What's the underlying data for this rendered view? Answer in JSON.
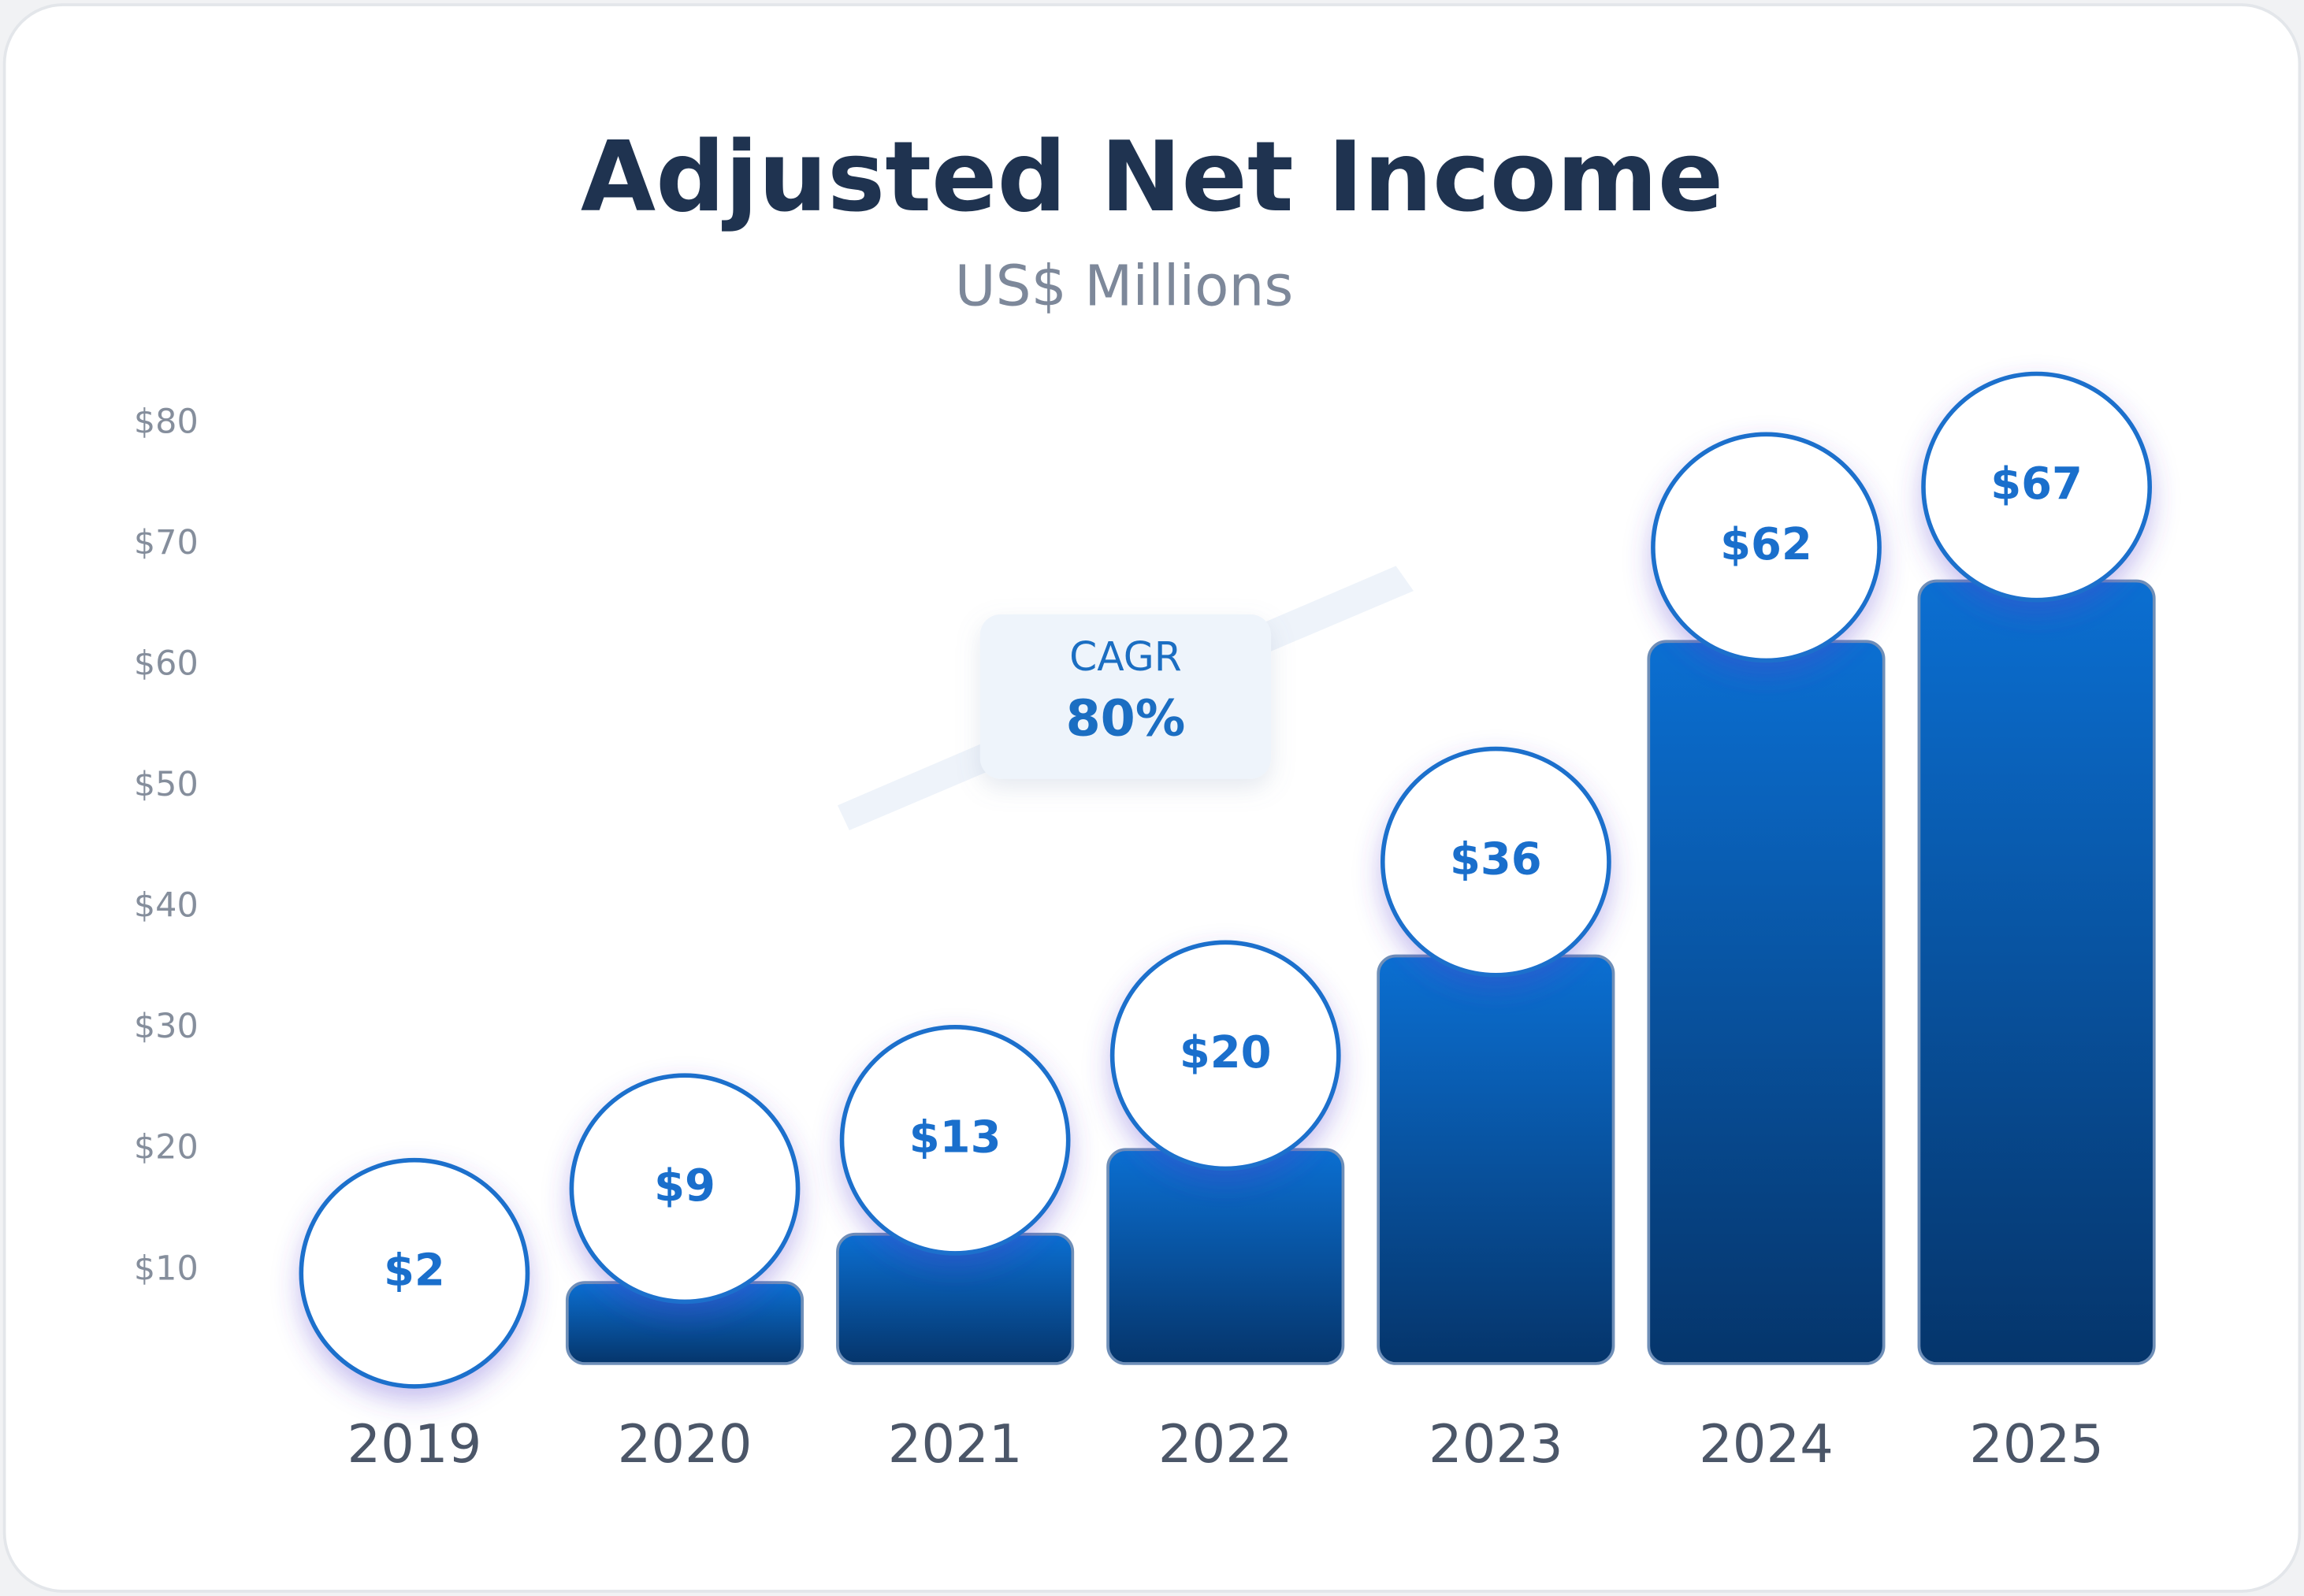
{
  "chart_data": {
    "type": "bar",
    "title": "Adjusted Net Income",
    "subtitle": "US$ Millions",
    "categories": [
      "2019",
      "2020",
      "2021",
      "2022",
      "2023",
      "2024",
      "2025"
    ],
    "values": [
      2,
      9,
      13,
      20,
      36,
      62,
      67
    ],
    "value_labels": [
      "$2",
      "$9",
      "$13",
      "$20",
      "$36",
      "$62",
      "$67"
    ],
    "color": "#0a5fb8",
    "ylim": [
      0,
      85
    ],
    "yticks": [
      {
        "value": 10,
        "label": "$10"
      },
      {
        "value": 20,
        "label": "$20"
      },
      {
        "value": 30,
        "label": "$30"
      },
      {
        "value": 40,
        "label": "$40"
      },
      {
        "value": 50,
        "label": "$50"
      },
      {
        "value": 60,
        "label": "$60"
      },
      {
        "value": 70,
        "label": "$70"
      },
      {
        "value": 80,
        "label": "$80"
      }
    ],
    "grid": false,
    "annotation": {
      "label": "CAGR",
      "value": "80%"
    }
  }
}
